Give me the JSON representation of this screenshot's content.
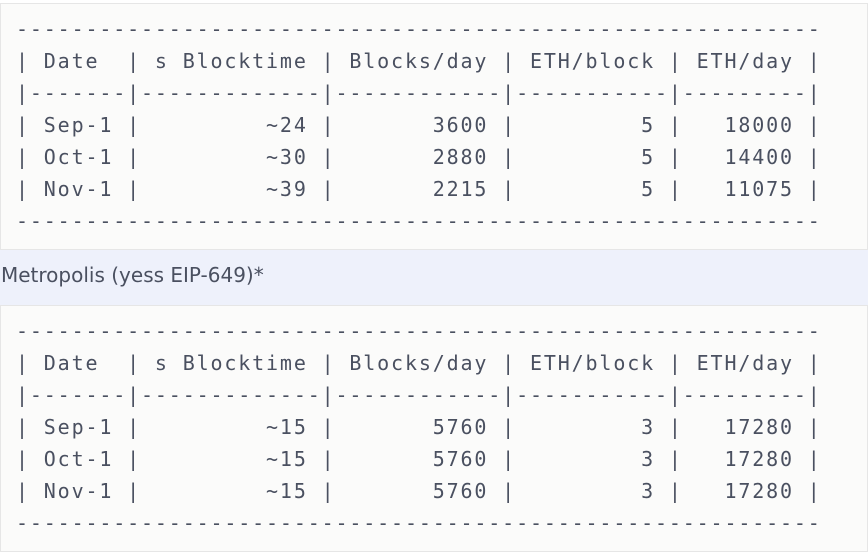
{
  "blocks": [
    {
      "lines": [
        "----------------------------------------------------------",
        "| Date  | s Blocktime | Blocks/day | ETH/block | ETH/day |",
        "|-------|-------------|------------|-----------|---------|",
        "| Sep-1 |         ~24 |       3600 |         5 |   18000 |",
        "| Oct-1 |         ~30 |       2880 |         5 |   14400 |",
        "| Nov-1 |         ~39 |       2215 |         5 |   11075 |",
        "----------------------------------------------------------"
      ]
    },
    {
      "lines": [
        "----------------------------------------------------------",
        "| Date  | s Blocktime | Blocks/day | ETH/block | ETH/day |",
        "|-------|-------------|------------|-----------|---------|",
        "| Sep-1 |         ~15 |       5760 |         3 |   17280 |",
        "| Oct-1 |         ~15 |       5760 |         3 |   17280 |",
        "| Nov-1 |         ~15 |       5760 |         3 |   17280 |",
        "----------------------------------------------------------"
      ]
    }
  ],
  "paragraph": "Metropolis (yess EIP-649)*"
}
